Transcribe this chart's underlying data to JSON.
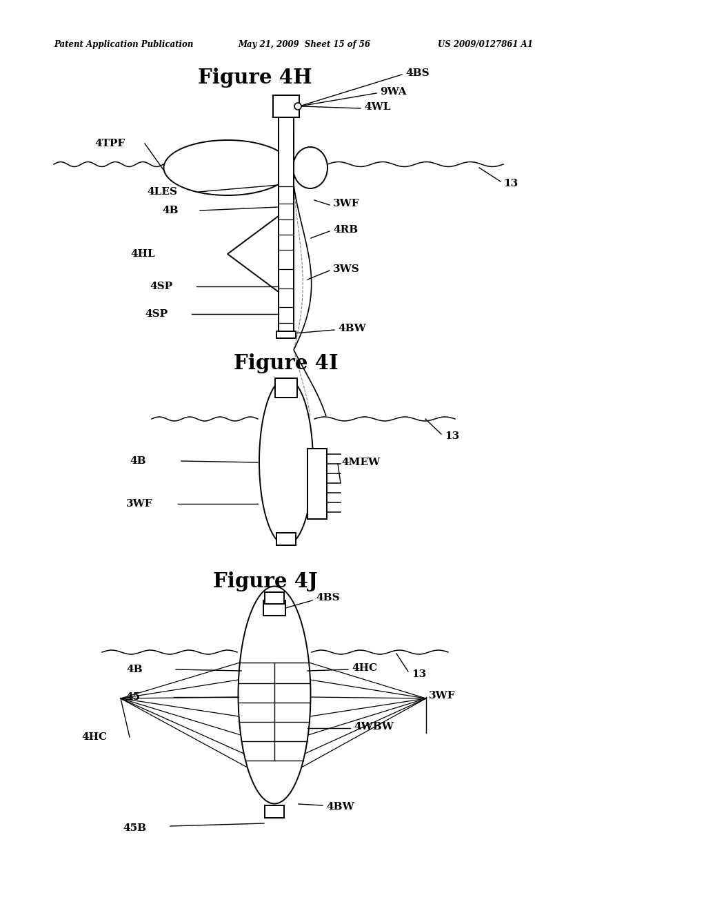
{
  "bg_color": "#ffffff",
  "header_text": "Patent Application Publication",
  "header_date": "May 21, 2009  Sheet 15 of 56",
  "header_patent": "US 2009/0127861 A1",
  "fig4h_title": "Figure 4H",
  "fig4i_title": "Figure 4I",
  "fig4j_title": "Figure 4J",
  "header_fontsize": 8.5,
  "fig_title_fontsize": 21,
  "label_fontsize": 11
}
